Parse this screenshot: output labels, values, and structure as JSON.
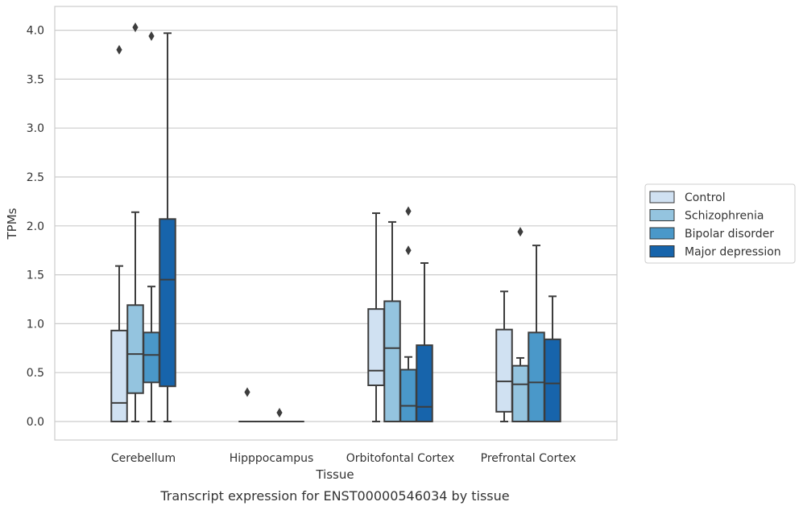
{
  "caption": "Transcript expression for ENST00000546034 by tissue",
  "chart_data": {
    "type": "boxplot",
    "title": "",
    "xlabel": "Tissue",
    "ylabel": "TPMs",
    "ylim": [
      -0.2,
      4.23
    ],
    "yticks": [
      0.0,
      0.5,
      1.0,
      1.5,
      2.0,
      2.5,
      3.0,
      3.5,
      4.0
    ],
    "ytick_labels": [
      "0.0",
      "0.5",
      "1.0",
      "1.5",
      "2.0",
      "2.5",
      "3.0",
      "3.5",
      "4.0"
    ],
    "grid": "horizontal",
    "legend_position": "right",
    "categories": [
      "Cerebellum",
      "Hipppocampus",
      "Orbitofontal Cortex",
      "Prefrontal Cortex"
    ],
    "series": [
      {
        "name": "Control",
        "color": "#d0e1f2",
        "boxes": [
          {
            "category": "Cerebellum",
            "whisker_low": 0.0,
            "q1": 0.0,
            "median": 0.19,
            "q3": 0.93,
            "whisker_high": 1.59,
            "outliers": [
              3.8
            ]
          },
          {
            "category": "Hipppocampus",
            "whisker_low": 0.0,
            "q1": 0.0,
            "median": 0.0,
            "q3": 0.0,
            "whisker_high": 0.0,
            "outliers": [
              0.3
            ]
          },
          {
            "category": "Orbitofontal Cortex",
            "whisker_low": 0.0,
            "q1": 0.37,
            "median": 0.52,
            "q3": 1.15,
            "whisker_high": 2.13,
            "outliers": []
          },
          {
            "category": "Prefrontal Cortex",
            "whisker_low": 0.0,
            "q1": 0.1,
            "median": 0.41,
            "q3": 0.94,
            "whisker_high": 1.33,
            "outliers": []
          }
        ]
      },
      {
        "name": "Schizophrenia",
        "color": "#94c4df",
        "boxes": [
          {
            "category": "Cerebellum",
            "whisker_low": 0.0,
            "q1": 0.29,
            "median": 0.69,
            "q3": 1.19,
            "whisker_high": 2.14,
            "outliers": [
              4.03
            ]
          },
          {
            "category": "Hipppocampus",
            "whisker_low": 0.0,
            "q1": 0.0,
            "median": 0.0,
            "q3": 0.0,
            "whisker_high": 0.0,
            "outliers": []
          },
          {
            "category": "Orbitofontal Cortex",
            "whisker_low": 0.0,
            "q1": 0.0,
            "median": 0.75,
            "q3": 1.23,
            "whisker_high": 2.04,
            "outliers": []
          },
          {
            "category": "Prefrontal Cortex",
            "whisker_low": 0.0,
            "q1": 0.0,
            "median": 0.38,
            "q3": 0.57,
            "whisker_high": 0.65,
            "outliers": [
              1.94
            ]
          }
        ]
      },
      {
        "name": "Bipolar disorder",
        "color": "#4a98c9",
        "boxes": [
          {
            "category": "Cerebellum",
            "whisker_low": 0.0,
            "q1": 0.4,
            "median": 0.68,
            "q3": 0.91,
            "whisker_high": 1.38,
            "outliers": [
              3.94
            ]
          },
          {
            "category": "Hipppocampus",
            "whisker_low": 0.0,
            "q1": 0.0,
            "median": 0.0,
            "q3": 0.0,
            "whisker_high": 0.0,
            "outliers": [
              0.09
            ]
          },
          {
            "category": "Orbitofontal Cortex",
            "whisker_low": 0.0,
            "q1": 0.0,
            "median": 0.16,
            "q3": 0.53,
            "whisker_high": 0.66,
            "outliers": [
              1.75,
              2.15
            ]
          },
          {
            "category": "Prefrontal Cortex",
            "whisker_low": 0.0,
            "q1": 0.0,
            "median": 0.4,
            "q3": 0.91,
            "whisker_high": 1.8,
            "outliers": []
          }
        ]
      },
      {
        "name": "Major depression",
        "color": "#1764ab",
        "boxes": [
          {
            "category": "Cerebellum",
            "whisker_low": 0.0,
            "q1": 0.36,
            "median": 1.45,
            "q3": 2.07,
            "whisker_high": 3.97,
            "outliers": []
          },
          {
            "category": "Hipppocampus",
            "whisker_low": 0.0,
            "q1": 0.0,
            "median": 0.0,
            "q3": 0.0,
            "whisker_high": 0.0,
            "outliers": []
          },
          {
            "category": "Orbitofontal Cortex",
            "whisker_low": 0.0,
            "q1": 0.0,
            "median": 0.15,
            "q3": 0.78,
            "whisker_high": 1.62,
            "outliers": []
          },
          {
            "category": "Prefrontal Cortex",
            "whisker_low": 0.0,
            "q1": 0.0,
            "median": 0.39,
            "q3": 0.84,
            "whisker_high": 1.28,
            "outliers": []
          }
        ]
      }
    ]
  }
}
